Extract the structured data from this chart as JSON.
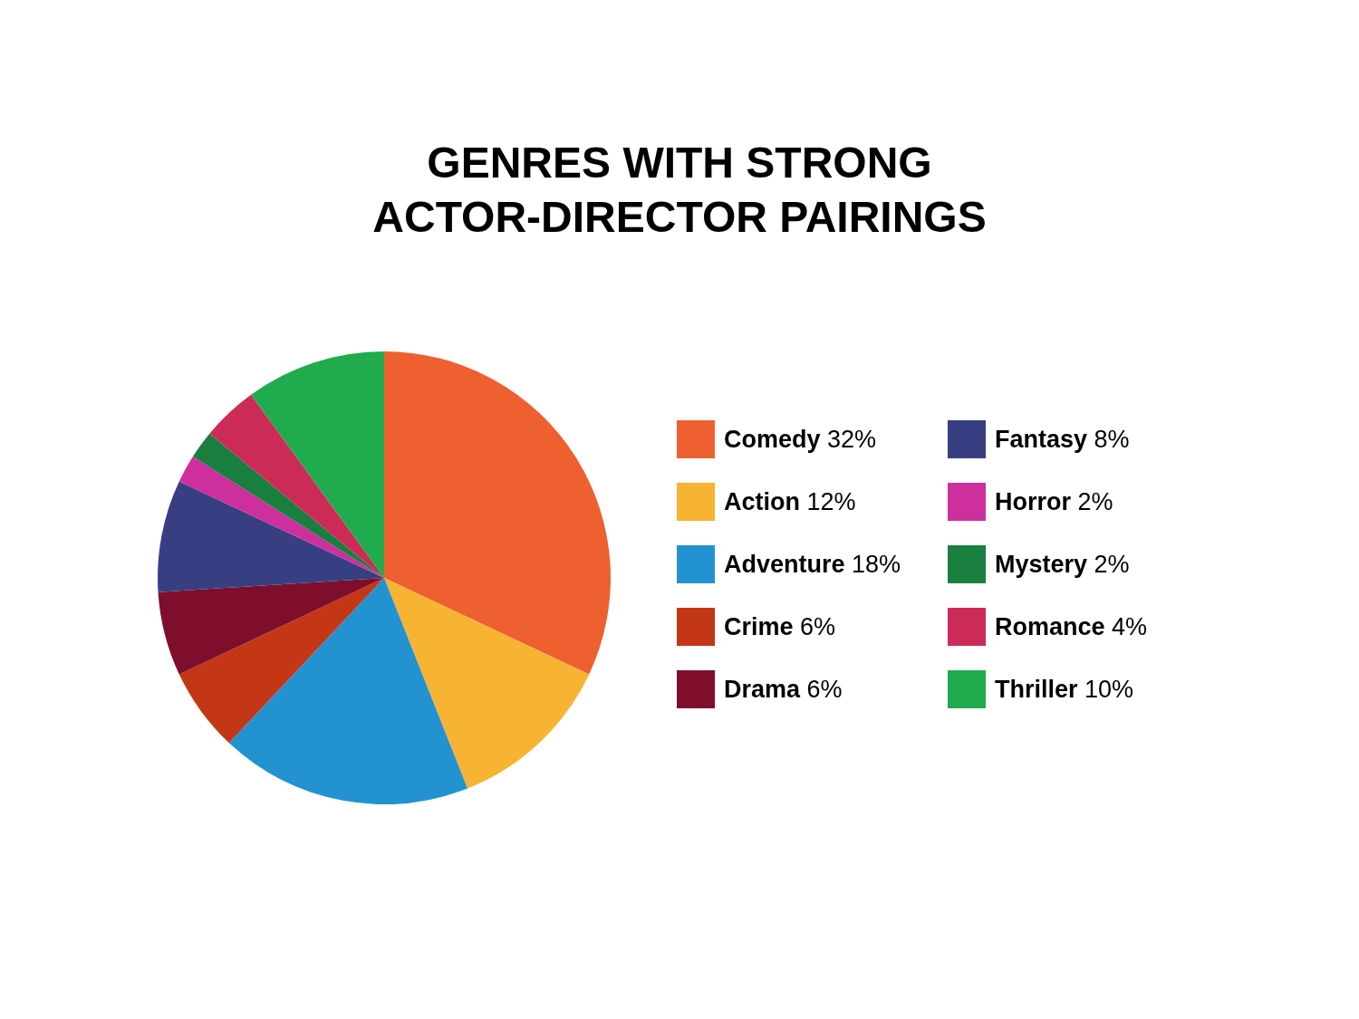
{
  "chart_data": {
    "type": "pie",
    "title": "GENRES WITH STRONG ACTOR-DIRECTOR PAIRINGS",
    "categories": [
      "Comedy",
      "Action",
      "Adventure",
      "Crime",
      "Drama",
      "Fantasy",
      "Horror",
      "Mystery",
      "Romance",
      "Thriller"
    ],
    "values": [
      32,
      12,
      18,
      6,
      6,
      8,
      2,
      2,
      4,
      10
    ],
    "value_labels": [
      "32%",
      "12%",
      "18%",
      "6%",
      "6%",
      "8%",
      "2%",
      "2%",
      "4%",
      "10%"
    ],
    "colors": [
      "#ee602f",
      "#f7b332",
      "#2293d0",
      "#c43716",
      "#7f0e2d",
      "#373f82",
      "#cd2f9d",
      "#197f3f",
      "#cc2b58",
      "#20ab4e"
    ],
    "legend": "right"
  }
}
